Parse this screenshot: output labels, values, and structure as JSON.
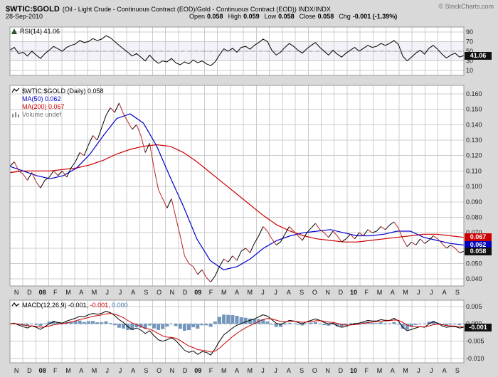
{
  "header": {
    "symbol": "$WTIC:$GOLD",
    "description": "(Oil - Light Crude - Continuous Contract (EOD)/Gold - Continuous Contract (EOD)) INDX/INDX",
    "credit": "© StockCharts.com",
    "date": "28-Sep-2010",
    "quote": {
      "open_label": "Open",
      "open": "0.058",
      "high_label": "High",
      "high": "0.059",
      "low_label": "Low",
      "low": "0.058",
      "close_label": "Close",
      "close": "0.058",
      "chg_label": "Chg",
      "chg": "-0.001 (-1.39%)"
    }
  },
  "rsi_panel": {
    "legend": "RSI(14) 41.06",
    "last_label": "41.06"
  },
  "main_panel": {
    "legend_price": "$WTIC:$GOLD (Daily) 0.058",
    "legend_ma50": "MA(50) 0.062",
    "legend_ma200": "MA(200) 0.067",
    "legend_volume": "Volume undef",
    "last_close_label": "0.058",
    "last_ma50_label": "0.062",
    "last_ma200_label": "0.067"
  },
  "macd_panel": {
    "legend_name": "MACD(12,26,9)",
    "legend_macd": "-0.001,",
    "legend_signal": "-0.001,",
    "legend_hist": "0.000",
    "last_label": "-0.001"
  },
  "x_axis": {
    "labels": [
      "N",
      "D",
      "08",
      "F",
      "M",
      "A",
      "M",
      "J",
      "J",
      "A",
      "S",
      "O",
      "N",
      "D",
      "09",
      "F",
      "M",
      "A",
      "M",
      "J",
      "J",
      "A",
      "S",
      "O",
      "N",
      "D",
      "10",
      "F",
      "M",
      "A",
      "M",
      "J",
      "J",
      "A",
      "S"
    ],
    "bold": [
      "08",
      "09",
      "10"
    ]
  },
  "colors": {
    "page_bg": "#d9d9d9",
    "panel_bg": "#ffffff",
    "grid": "#cccccc",
    "border": "#999999",
    "price": "#000000",
    "price_down": "#bb2222",
    "ma50": "#0000cc",
    "ma200": "#cc0000",
    "rsi": "#000000",
    "rsi_band": "#f2f2f8",
    "macd": "#000000",
    "signal": "#cc0000",
    "hist": "#7296bc",
    "box_dark": "#111111",
    "credit": "#707070"
  },
  "chart_data": [
    {
      "panel": "rsi",
      "type": "line",
      "title": "RSI(14)",
      "ylim": [
        0,
        100
      ],
      "yticks": [
        90,
        70,
        50,
        30,
        10
      ],
      "tick_decimals": 0,
      "band": [
        30,
        70
      ],
      "midline": 50,
      "last": 41.06,
      "series": [
        {
          "name": "RSI(14)",
          "color": "#000000",
          "values": [
            52,
            58,
            45,
            48,
            40,
            50,
            42,
            35,
            45,
            52,
            60,
            55,
            50,
            58,
            62,
            65,
            72,
            68,
            70,
            76,
            72,
            75,
            82,
            78,
            70,
            62,
            55,
            48,
            40,
            45,
            38,
            30,
            42,
            32,
            25,
            30,
            28,
            35,
            26,
            22,
            28,
            24,
            32,
            26,
            30,
            24,
            20,
            28,
            42,
            55,
            50,
            56,
            48,
            58,
            60,
            54,
            62,
            68,
            75,
            70,
            52,
            42,
            48,
            58,
            66,
            60,
            52,
            46,
            55,
            62,
            68,
            58,
            50,
            42,
            52,
            44,
            38,
            46,
            52,
            58,
            50,
            56,
            62,
            58,
            60,
            66,
            62,
            66,
            72,
            64,
            40,
            30,
            38,
            46,
            52,
            44,
            56,
            62,
            54,
            44,
            36,
            42,
            46,
            38,
            41
          ]
        }
      ]
    },
    {
      "panel": "price",
      "type": "line",
      "title": "$WTIC:$GOLD (Daily)",
      "ylim": [
        0.0355,
        0.1655
      ],
      "yticks": [
        0.16,
        0.15,
        0.14,
        0.13,
        0.12,
        0.11,
        0.1,
        0.09,
        0.08,
        0.07,
        0.06,
        0.05,
        0.04
      ],
      "tick_decimals": 3,
      "last_close": 0.058,
      "last_ma50": 0.062,
      "last_ma200": 0.067,
      "series": [
        {
          "name": "$WTIC:$GOLD",
          "color": "#000000",
          "down_color": "#bb2222",
          "values": [
            0.113,
            0.116,
            0.11,
            0.108,
            0.104,
            0.109,
            0.103,
            0.099,
            0.104,
            0.106,
            0.11,
            0.107,
            0.11,
            0.106,
            0.112,
            0.116,
            0.122,
            0.12,
            0.127,
            0.133,
            0.13,
            0.138,
            0.146,
            0.151,
            0.148,
            0.154,
            0.147,
            0.142,
            0.137,
            0.14,
            0.133,
            0.122,
            0.128,
            0.112,
            0.098,
            0.092,
            0.086,
            0.092,
            0.08,
            0.068,
            0.055,
            0.05,
            0.048,
            0.043,
            0.046,
            0.041,
            0.038,
            0.042,
            0.048,
            0.053,
            0.051,
            0.055,
            0.052,
            0.058,
            0.06,
            0.057,
            0.063,
            0.068,
            0.074,
            0.071,
            0.066,
            0.062,
            0.064,
            0.069,
            0.074,
            0.071,
            0.068,
            0.065,
            0.07,
            0.073,
            0.076,
            0.072,
            0.07,
            0.067,
            0.071,
            0.068,
            0.064,
            0.066,
            0.069,
            0.066,
            0.07,
            0.068,
            0.072,
            0.07,
            0.071,
            0.074,
            0.072,
            0.075,
            0.077,
            0.073,
            0.066,
            0.061,
            0.064,
            0.062,
            0.066,
            0.063,
            0.065,
            0.068,
            0.066,
            0.063,
            0.06,
            0.062,
            0.06,
            0.057,
            0.058
          ]
        },
        {
          "name": "MA(50)",
          "color": "#0000cc",
          "values": [
            0.113,
            0.11,
            0.107,
            0.105,
            0.107,
            0.112,
            0.121,
            0.133,
            0.144,
            0.147,
            0.141,
            0.126,
            0.106,
            0.087,
            0.066,
            0.052,
            0.046,
            0.048,
            0.053,
            0.06,
            0.065,
            0.068,
            0.07,
            0.071,
            0.072,
            0.07,
            0.068,
            0.068,
            0.069,
            0.071,
            0.071,
            0.067,
            0.065,
            0.063,
            0.062
          ]
        },
        {
          "name": "MA(200)",
          "color": "#cc0000",
          "values": [
            0.109,
            0.11,
            0.11,
            0.11,
            0.111,
            0.112,
            0.114,
            0.117,
            0.121,
            0.124,
            0.126,
            0.127,
            0.126,
            0.122,
            0.116,
            0.109,
            0.102,
            0.095,
            0.088,
            0.081,
            0.075,
            0.071,
            0.068,
            0.066,
            0.065,
            0.064,
            0.064,
            0.065,
            0.066,
            0.067,
            0.068,
            0.069,
            0.069,
            0.068,
            0.067
          ]
        }
      ]
    },
    {
      "panel": "macd",
      "type": "line",
      "title": "MACD(12,26,9)",
      "ylim": [
        -0.0112,
        0.0068
      ],
      "yticks": [
        0.005,
        0.0,
        -0.005,
        -0.01
      ],
      "tick_decimals": 3,
      "zero_line": 0,
      "signal_alpha": 0.3,
      "last": -0.001,
      "signal_color": "#cc0000",
      "hist_color": "#7296bc",
      "series": [
        {
          "name": "MACD",
          "color": "#000000",
          "values": [
            0.0,
            0.0002,
            -0.0004,
            -0.0008,
            -0.0012,
            -0.0006,
            -0.001,
            -0.0016,
            -0.0008,
            0.0,
            0.0006,
            0.0004,
            0.0002,
            0.0008,
            0.0012,
            0.0016,
            0.0022,
            0.002,
            0.0026,
            0.003,
            0.0028,
            0.003,
            0.0036,
            0.0032,
            0.0024,
            0.0012,
            0.0004,
            -0.0008,
            -0.0016,
            -0.0012,
            -0.0018,
            -0.0028,
            -0.002,
            -0.0034,
            -0.0046,
            -0.005,
            -0.0046,
            -0.004,
            -0.0048,
            -0.0062,
            -0.0076,
            -0.0082,
            -0.0078,
            -0.0088,
            -0.008,
            -0.0082,
            -0.009,
            -0.0072,
            -0.005,
            -0.0032,
            -0.0022,
            -0.0012,
            -0.0004,
            0.0,
            0.0006,
            0.001,
            0.0014,
            0.002,
            0.0026,
            0.0022,
            0.0012,
            0.0002,
            -0.0002,
            0.0004,
            0.001,
            0.0008,
            0.0004,
            0.0,
            0.0006,
            0.001,
            0.0014,
            0.001,
            0.0004,
            0.0,
            0.0002,
            -0.0006,
            -0.001,
            -0.0008,
            -0.0002,
            0.0,
            0.0002,
            0.0006,
            0.001,
            0.0008,
            0.0008,
            0.0012,
            0.001,
            0.001,
            0.0016,
            0.0008,
            -0.001,
            -0.002,
            -0.0016,
            -0.0012,
            -0.0008,
            -0.001,
            0.0,
            0.0006,
            0.0002,
            -0.0006,
            -0.001,
            -0.0008,
            -0.0008,
            -0.0012,
            -0.001
          ]
        }
      ]
    }
  ]
}
